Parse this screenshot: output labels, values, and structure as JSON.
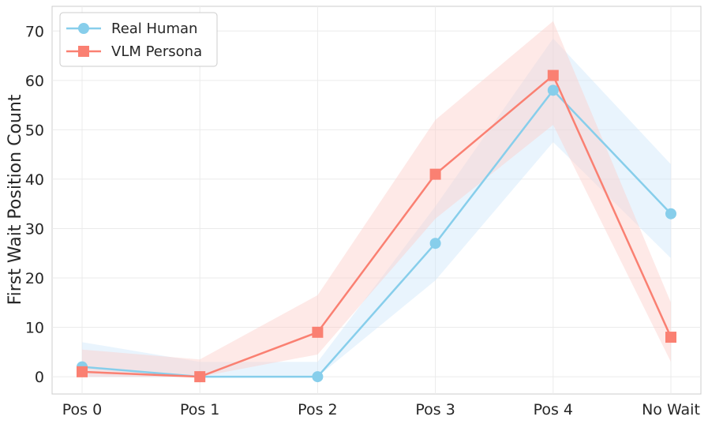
{
  "chart_data": {
    "type": "line",
    "title": "",
    "xlabel": "",
    "ylabel": "First Wait Position Count",
    "categories": [
      "Pos 0",
      "Pos 1",
      "Pos 2",
      "Pos 3",
      "Pos 4",
      "No Wait"
    ],
    "ylim": [
      -3.5,
      75
    ],
    "yticks": [
      0,
      10,
      20,
      30,
      40,
      50,
      60,
      70
    ],
    "grid": true,
    "legend_position": "top-left",
    "series": [
      {
        "name": "Real Human",
        "marker": "circle",
        "color": "#87CEEB",
        "band_color": "#cfe7fa",
        "values": [
          2,
          0,
          0,
          27,
          58,
          33
        ],
        "lower": [
          0,
          0,
          0,
          19.5,
          47.5,
          24
        ],
        "upper": [
          7,
          3,
          3,
          34.5,
          68.5,
          43
        ]
      },
      {
        "name": "VLM Persona",
        "marker": "square",
        "color": "#FA8072",
        "band_color": "#fdcfca",
        "values": [
          1,
          0,
          9,
          41,
          61,
          8
        ],
        "lower": [
          0,
          0,
          4.5,
          32,
          51,
          3
        ],
        "upper": [
          5.5,
          3.5,
          16.5,
          52,
          72,
          15
        ]
      }
    ]
  }
}
